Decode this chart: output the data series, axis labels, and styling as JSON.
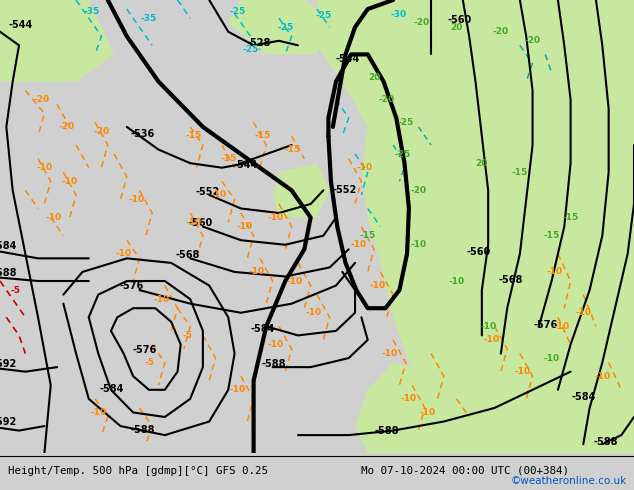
{
  "title_left": "Height/Temp. 500 hPa [gdmp][°C] GFS 0.25",
  "title_right": "Mo 07-10-2024 00:00 UTC (00+384)",
  "credit": "©weatheronline.co.uk",
  "bg_gray": "#d0d0d0",
  "green_light": "#c8e8a0",
  "green_mid": "#a0cc78",
  "green_dark": "#78b050",
  "bottom_bar": "#f0f0f0",
  "col_black": "#000000",
  "col_orange": "#ff8800",
  "col_red": "#cc0000",
  "col_cyan": "#00bbcc",
  "col_green_label": "#44aa22",
  "col_blue": "#0055cc",
  "col_teal": "#00aaaa",
  "fig_w": 6.34,
  "fig_h": 4.9,
  "dpi": 100
}
